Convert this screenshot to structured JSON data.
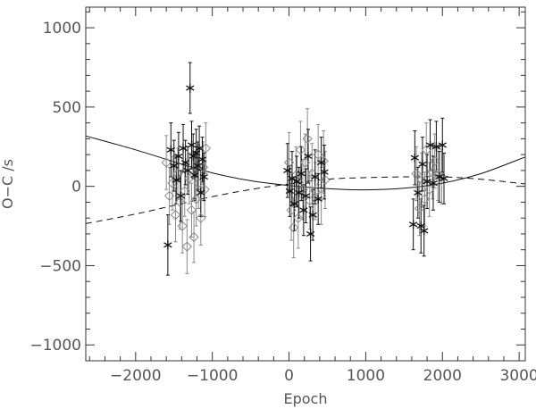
{
  "chart_data": {
    "type": "scatter",
    "title": "",
    "xlabel": "Epoch",
    "ylabel": "O−C /s",
    "xlim": [
      -2650,
      3080
    ],
    "ylim": [
      -1100,
      1130
    ],
    "xticks": [
      -2000,
      -1000,
      0,
      1000,
      2000,
      3000
    ],
    "xtick_labels": [
      "−2000",
      "−1000",
      "0",
      "1000",
      "2000",
      "3000"
    ],
    "yticks": [
      -1000,
      -500,
      0,
      500,
      1000
    ],
    "ytick_labels": [
      "−1000",
      "−500",
      "0",
      "500",
      "1000"
    ],
    "x_minor_step": 200,
    "y_minor_step": 100,
    "grid": false,
    "colors": {
      "star_series": "#111111",
      "diamond_series": "#8a8a8a",
      "axis": "#333333",
      "text": "#555555",
      "fit_curve": "#111111"
    },
    "series": [
      {
        "marker": "star",
        "points": [
          {
            "x": -1580,
            "y": -370,
            "err": 190
          },
          {
            "x": -1540,
            "y": 230,
            "err": 170
          },
          {
            "x": -1500,
            "y": 130,
            "err": 160
          },
          {
            "x": -1470,
            "y": 40,
            "err": 150
          },
          {
            "x": -1440,
            "y": 190,
            "err": 150
          },
          {
            "x": -1410,
            "y": -60,
            "err": 160
          },
          {
            "x": -1380,
            "y": 240,
            "err": 150
          },
          {
            "x": -1350,
            "y": 150,
            "err": 140
          },
          {
            "x": -1320,
            "y": 100,
            "err": 150
          },
          {
            "x": -1290,
            "y": 620,
            "err": 160
          },
          {
            "x": -1270,
            "y": 260,
            "err": 150
          },
          {
            "x": -1250,
            "y": 190,
            "err": 140
          },
          {
            "x": -1230,
            "y": 70,
            "err": 150
          },
          {
            "x": -1210,
            "y": 210,
            "err": 150
          },
          {
            "x": -1190,
            "y": 130,
            "err": 150
          },
          {
            "x": -1170,
            "y": 240,
            "err": 140
          },
          {
            "x": -1150,
            "y": -40,
            "err": 150
          },
          {
            "x": -1130,
            "y": 170,
            "err": 140
          },
          {
            "x": -1110,
            "y": 60,
            "err": 150
          },
          {
            "x": -20,
            "y": 100,
            "err": 170
          },
          {
            "x": 10,
            "y": -30,
            "err": 160
          },
          {
            "x": 40,
            "y": 50,
            "err": 170
          },
          {
            "x": 70,
            "y": -110,
            "err": 170
          },
          {
            "x": 100,
            "y": 30,
            "err": 160
          },
          {
            "x": 130,
            "y": -40,
            "err": 160
          },
          {
            "x": 160,
            "y": 80,
            "err": 170
          },
          {
            "x": 190,
            "y": -150,
            "err": 160
          },
          {
            "x": 220,
            "y": -60,
            "err": 170
          },
          {
            "x": 250,
            "y": 190,
            "err": 170
          },
          {
            "x": 280,
            "y": -300,
            "err": 170
          },
          {
            "x": 310,
            "y": -180,
            "err": 160
          },
          {
            "x": 340,
            "y": 60,
            "err": 170
          },
          {
            "x": 380,
            "y": -80,
            "err": 160
          },
          {
            "x": 420,
            "y": 150,
            "err": 160
          },
          {
            "x": 460,
            "y": 90,
            "err": 170
          },
          {
            "x": 1620,
            "y": -240,
            "err": 160
          },
          {
            "x": 1640,
            "y": 180,
            "err": 170
          },
          {
            "x": 1680,
            "y": -40,
            "err": 160
          },
          {
            "x": 1720,
            "y": -250,
            "err": 170
          },
          {
            "x": 1740,
            "y": 140,
            "err": 170
          },
          {
            "x": 1760,
            "y": -280,
            "err": 160
          },
          {
            "x": 1800,
            "y": 30,
            "err": 170
          },
          {
            "x": 1840,
            "y": 260,
            "err": 160
          },
          {
            "x": 1880,
            "y": 20,
            "err": 170
          },
          {
            "x": 1920,
            "y": 250,
            "err": 160
          },
          {
            "x": 1960,
            "y": 60,
            "err": 160
          },
          {
            "x": 2000,
            "y": 260,
            "err": 170
          },
          {
            "x": 2020,
            "y": 50,
            "err": 160
          }
        ]
      },
      {
        "marker": "diamond",
        "points": [
          {
            "x": -1600,
            "y": 150,
            "err": 170
          },
          {
            "x": -1560,
            "y": -60,
            "err": 180
          },
          {
            "x": -1520,
            "y": 20,
            "err": 170
          },
          {
            "x": -1480,
            "y": -180,
            "err": 170
          },
          {
            "x": -1450,
            "y": 80,
            "err": 160
          },
          {
            "x": -1420,
            "y": -100,
            "err": 170
          },
          {
            "x": -1390,
            "y": -250,
            "err": 170
          },
          {
            "x": -1360,
            "y": -30,
            "err": 160
          },
          {
            "x": -1330,
            "y": -380,
            "err": 170
          },
          {
            "x": -1300,
            "y": 50,
            "err": 160
          },
          {
            "x": -1270,
            "y": -150,
            "err": 170
          },
          {
            "x": -1240,
            "y": -320,
            "err": 160
          },
          {
            "x": -1210,
            "y": -80,
            "err": 170
          },
          {
            "x": -1180,
            "y": 20,
            "err": 160
          },
          {
            "x": -1150,
            "y": -200,
            "err": 170
          },
          {
            "x": -1120,
            "y": 120,
            "err": 160
          },
          {
            "x": -1100,
            "y": -20,
            "err": 170
          },
          {
            "x": -1085,
            "y": 240,
            "err": 160
          },
          {
            "x": 0,
            "y": 150,
            "err": 190
          },
          {
            "x": 30,
            "y": -150,
            "err": 190
          },
          {
            "x": 60,
            "y": -260,
            "err": 190
          },
          {
            "x": 90,
            "y": 70,
            "err": 180
          },
          {
            "x": 120,
            "y": -200,
            "err": 190
          },
          {
            "x": 150,
            "y": 230,
            "err": 180
          },
          {
            "x": 180,
            "y": -20,
            "err": 190
          },
          {
            "x": 210,
            "y": 150,
            "err": 180
          },
          {
            "x": 240,
            "y": 300,
            "err": 190
          },
          {
            "x": 270,
            "y": -90,
            "err": 180
          },
          {
            "x": 300,
            "y": 80,
            "err": 190
          },
          {
            "x": 340,
            "y": -30,
            "err": 180
          },
          {
            "x": 380,
            "y": 200,
            "err": 190
          },
          {
            "x": 420,
            "y": -60,
            "err": 180
          },
          {
            "x": 450,
            "y": 160,
            "err": 190
          },
          {
            "x": 470,
            "y": 40,
            "err": 180
          },
          {
            "x": 1660,
            "y": 80,
            "err": 170
          },
          {
            "x": 1700,
            "y": -140,
            "err": 170
          },
          {
            "x": 1730,
            "y": 40,
            "err": 170
          },
          {
            "x": 1770,
            "y": -80,
            "err": 170
          },
          {
            "x": 1790,
            "y": 230,
            "err": 170
          },
          {
            "x": 1830,
            "y": -20,
            "err": 170
          },
          {
            "x": 1870,
            "y": 90,
            "err": 170
          },
          {
            "x": 1900,
            "y": 160,
            "err": 170
          },
          {
            "x": 1940,
            "y": 80,
            "err": 170
          },
          {
            "x": 1990,
            "y": 60,
            "err": 170
          }
        ]
      }
    ],
    "curves": [
      {
        "style": "solid",
        "x": [
          -2650,
          -2000,
          -1500,
          -1000,
          -500,
          0,
          500,
          1000,
          1500,
          2000,
          2500,
          3080
        ],
        "y": [
          318,
          230,
          155,
          85,
          35,
          5,
          -15,
          -22,
          -12,
          20,
          80,
          185
        ]
      },
      {
        "style": "dashed",
        "x": [
          -2650,
          -2000,
          -1500,
          -1000,
          -500,
          0,
          500,
          1000,
          1500,
          2000,
          2500,
          3080
        ],
        "y": [
          -235,
          -175,
          -120,
          -65,
          -20,
          15,
          45,
          55,
          60,
          60,
          45,
          15
        ]
      }
    ]
  }
}
